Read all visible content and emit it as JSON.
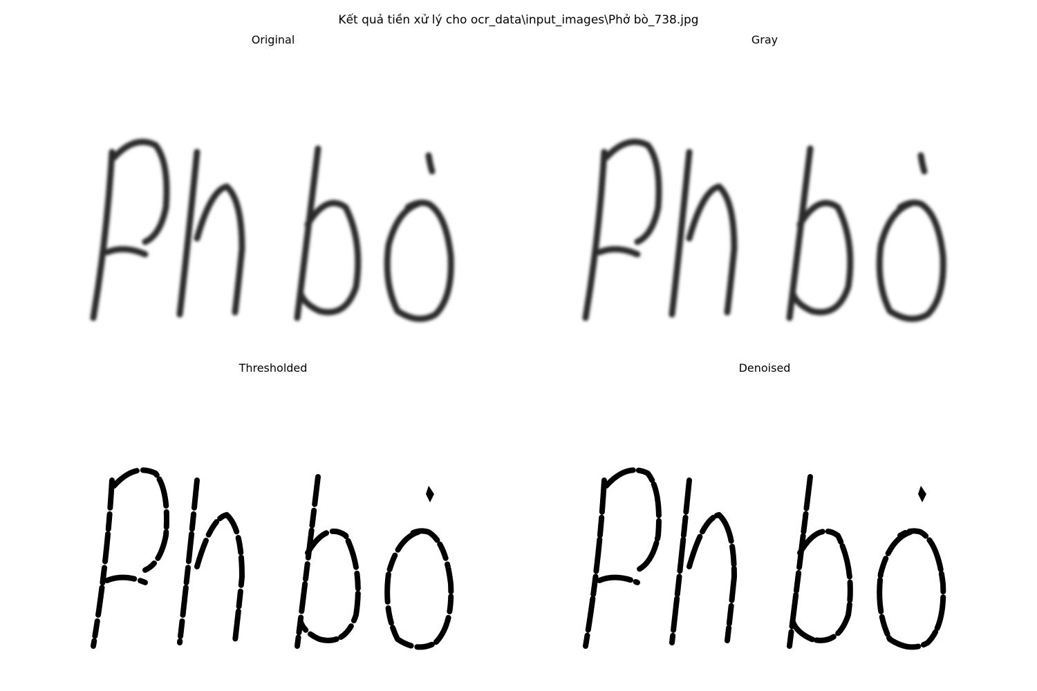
{
  "figure": {
    "title": "Kết quả tiền xử lý cho ocr_data\\input_images\\Phở bò_738.jpg"
  },
  "panels": [
    {
      "title": "Original",
      "style": "soft"
    },
    {
      "title": "Gray",
      "style": "soft"
    },
    {
      "title": "Thresholded",
      "style": "binary"
    },
    {
      "title": "Denoised",
      "style": "binary"
    }
  ],
  "colors": {
    "background": "#ffffff",
    "ink": "#000000",
    "soft_ink": "#2b2b2b"
  }
}
